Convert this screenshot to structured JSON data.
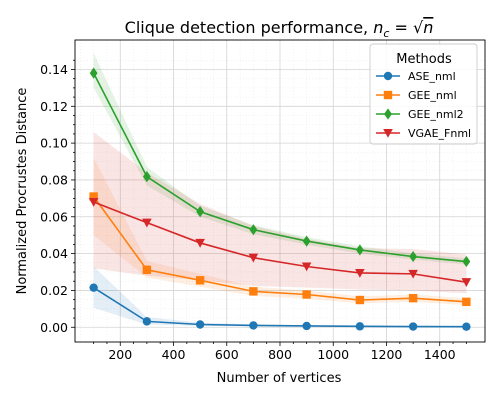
{
  "chart_data": {
    "type": "line",
    "title": "Clique detection performance, n_c = √n",
    "title_parts": {
      "main": "Clique detection performance, ",
      "n": "n",
      "sub": "c",
      "eq": " = √",
      "n2": "n"
    },
    "xlabel": "Number of vertices",
    "ylabel": "Normalized Procrustes Distance",
    "xlim": [
      30,
      1570
    ],
    "ylim": [
      -0.008,
      0.156
    ],
    "xticks": [
      200,
      400,
      600,
      800,
      1000,
      1200,
      1400
    ],
    "yticks": [
      0.0,
      0.02,
      0.04,
      0.06,
      0.08,
      0.1,
      0.12,
      0.14
    ],
    "ytick_labels": [
      "0.00",
      "0.02",
      "0.04",
      "0.06",
      "0.08",
      "0.10",
      "0.12",
      "0.14"
    ],
    "grid": true,
    "legend": {
      "title": "Methods",
      "position": "top-right"
    },
    "x": [
      100,
      300,
      500,
      700,
      900,
      1100,
      1300,
      1500
    ],
    "series": [
      {
        "name": "ASE_nml",
        "color": "#1f77b4",
        "marker": "circle",
        "values": [
          0.0215,
          0.0032,
          0.0015,
          0.001,
          0.0007,
          0.0005,
          0.0004,
          0.0003
        ],
        "lower": [
          0.0105,
          0.0015,
          0.0008,
          0.0005,
          0.0004,
          0.0003,
          0.0002,
          0.0002
        ],
        "upper": [
          0.033,
          0.0055,
          0.0025,
          0.0016,
          0.0011,
          0.0008,
          0.0006,
          0.0005
        ]
      },
      {
        "name": "GEE_nml",
        "color": "#ff7f0e",
        "marker": "square",
        "values": [
          0.071,
          0.0312,
          0.0255,
          0.0195,
          0.0178,
          0.0148,
          0.0158,
          0.0138
        ],
        "lower": [
          0.05,
          0.027,
          0.022,
          0.017,
          0.0155,
          0.013,
          0.0138,
          0.012
        ],
        "upper": [
          0.092,
          0.036,
          0.029,
          0.022,
          0.02,
          0.0168,
          0.0178,
          0.0158
        ]
      },
      {
        "name": "GEE_nml2",
        "color": "#2ca02c",
        "marker": "diamond",
        "values": [
          0.138,
          0.0818,
          0.0628,
          0.053,
          0.0468,
          0.042,
          0.0384,
          0.0357
        ],
        "lower": [
          0.13,
          0.077,
          0.06,
          0.0505,
          0.0448,
          0.04,
          0.0367,
          0.034
        ],
        "upper": [
          0.149,
          0.087,
          0.066,
          0.0555,
          0.049,
          0.044,
          0.0402,
          0.0375
        ]
      },
      {
        "name": "VGAE_Fnml",
        "color": "#d62728",
        "marker": "triangle-down",
        "values": [
          0.068,
          0.0568,
          0.0458,
          0.0378,
          0.033,
          0.0295,
          0.029,
          0.0245
        ],
        "lower": [
          0.032,
          0.028,
          0.0255,
          0.0225,
          0.0215,
          0.0205,
          0.02,
          0.0185
        ],
        "upper": [
          0.106,
          0.084,
          0.067,
          0.055,
          0.048,
          0.043,
          0.0425,
          0.0395
        ]
      }
    ]
  }
}
